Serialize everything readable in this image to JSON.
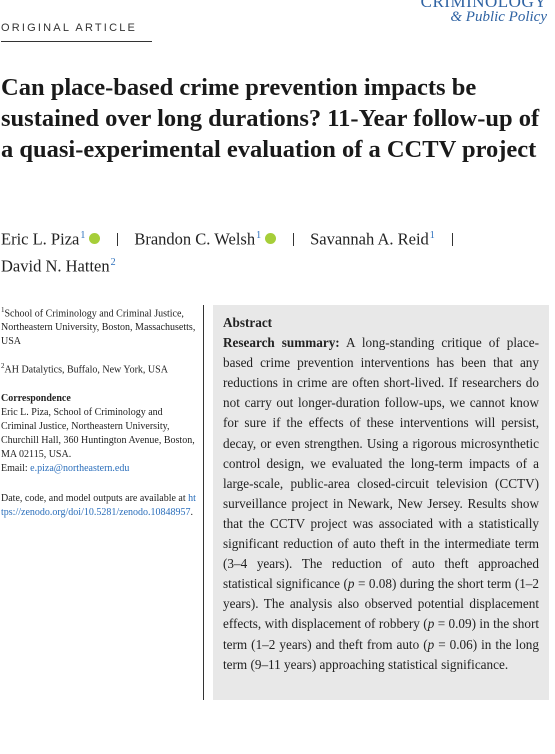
{
  "header": {
    "label": "ORIGINAL ARTICLE",
    "journal": [
      "CRIMINOLOGY",
      "& Public Policy"
    ]
  },
  "title": "Can place-based crime prevention impacts be sustained over long durations? 11-Year follow-up of a quasi-experimental evaluation of a CCTV project",
  "authors": [
    {
      "name": "Eric L. Piza",
      "affiliation": "1"
    },
    {
      "name": "Brandon C. Welsh",
      "affiliation": "1"
    },
    {
      "name": "Savannah A. Reid",
      "affiliation": "1"
    },
    {
      "name": "David N. Hatten",
      "affiliation": "2"
    }
  ],
  "affiliations": [
    {
      "mark": "1",
      "text": "School of Criminology and Criminal Justice, Northeastern University, Boston, Massachusetts, USA"
    },
    {
      "mark": "2",
      "text": "AH Datalytics, Buffalo, New York, USA"
    }
  ],
  "correspondence": {
    "heading": "Correspondence",
    "text": "Eric L. Piza, School of Criminology and Criminal Justice, Northeastern University, Churchill Hall, 360 Huntington Avenue, Boston, MA 02115, USA.",
    "email_label": "Email:",
    "email": "e.piza@northeastern.edu"
  },
  "data_note": {
    "text": "Date, code, and model outputs are available at",
    "link": "https://zenodo.org/doi/10.5281/zenodo.10848957",
    "end": "."
  },
  "abstract": {
    "heading": "Abstract",
    "lead": "Research summary:",
    "body": [
      {
        "text": "A long-standing critique of place-based crime prevention interventions has been that any reductions in crime are often short-lived. If researchers do not carry out longer-duration follow-ups, we cannot know for sure if the effects of these interventions will persist, decay, or even strengthen. Using a rigorous microsynthetic control design, we evaluated the long-term impacts of a large-scale, public-area closed-circuit television (CCTV) surveillance project in Newark, New Jersey. Results show that the CCTV project was associated with a statistically significant reduction of auto theft in the intermediate term (3–4 years). The reduction of auto theft approached statistical significance ("
      },
      {
        "text": "p",
        "style": "italic"
      },
      {
        "text": " = 0.08) during the short term (1–2 years). The analysis also observed potential displacement effects, with displacement of robbery ("
      },
      {
        "text": "p",
        "style": "italic"
      },
      {
        "text": " = 0.09) in the short term (1–2 years) and theft from auto ("
      },
      {
        "text": "p",
        "style": "italic"
      },
      {
        "text": " = 0.06) in the long term (9–11 years) approaching statistical significance."
      }
    ]
  }
}
